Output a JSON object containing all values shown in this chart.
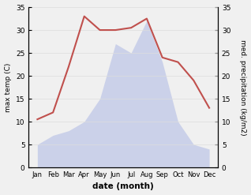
{
  "months": [
    "Jan",
    "Feb",
    "Mar",
    "Apr",
    "May",
    "Jun",
    "Jul",
    "Aug",
    "Sep",
    "Oct",
    "Nov",
    "Dec"
  ],
  "temperature": [
    10.5,
    12.0,
    22.0,
    33.0,
    30.0,
    30.0,
    30.5,
    32.5,
    24.0,
    23.0,
    19.0,
    13.0
  ],
  "precipitation": [
    5.0,
    7.0,
    8.0,
    10.0,
    15.0,
    27.0,
    25.0,
    32.0,
    23.0,
    10.0,
    5.0,
    4.0
  ],
  "temp_color": "#c0504d",
  "precip_fill_color": "#c5cce8",
  "precip_fill_alpha": 0.85,
  "ylabel_left": "max temp (C)",
  "ylabel_right": "med. precipitation (kg/m2)",
  "xlabel": "date (month)",
  "ylim_left": [
    0,
    35
  ],
  "ylim_right": [
    0,
    35
  ],
  "yticks": [
    0,
    5,
    10,
    15,
    20,
    25,
    30,
    35
  ],
  "bg_color": "#f0f0f0",
  "plot_bg_color": "#ffffff"
}
